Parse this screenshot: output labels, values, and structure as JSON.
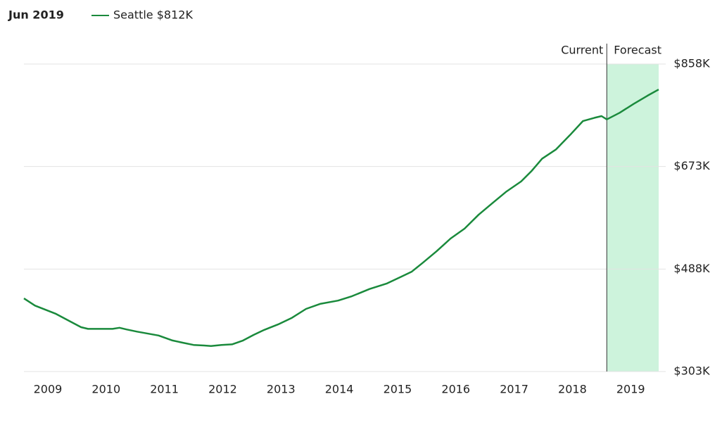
{
  "chart_data": {
    "type": "line",
    "title": "Jun 2019",
    "x": [
      2008.59,
      2008.78,
      2009.14,
      2009.39,
      2009.57,
      2009.69,
      2010.11,
      2010.23,
      2010.35,
      2010.53,
      2010.9,
      2011.14,
      2011.32,
      2011.5,
      2011.68,
      2011.8,
      2011.98,
      2012.16,
      2012.35,
      2012.53,
      2012.71,
      2012.95,
      2013.19,
      2013.43,
      2013.67,
      2013.98,
      2014.22,
      2014.52,
      2014.82,
      2015.06,
      2015.24,
      2015.43,
      2015.67,
      2015.91,
      2016.15,
      2016.39,
      2016.63,
      2016.87,
      2017.12,
      2017.3,
      2017.48,
      2017.72,
      2017.96,
      2018.18,
      2018.38,
      2018.5,
      2018.59,
      2018.81,
      2019.05,
      2019.29,
      2019.48
    ],
    "series": [
      {
        "name": "Seattle $812K",
        "color": "#1a8a3c",
        "values": [
          435,
          422,
          407,
          393,
          383,
          380,
          380,
          382,
          379,
          375,
          368,
          359,
          355,
          351,
          350,
          349,
          351,
          352,
          359,
          369,
          378,
          388,
          400,
          416,
          425,
          431,
          439,
          452,
          462,
          474,
          483,
          499,
          520,
          543,
          561,
          586,
          607,
          628,
          646,
          665,
          687,
          704,
          730,
          755,
          761,
          764,
          758,
          770,
          786,
          801,
          812
        ]
      }
    ],
    "xlim": [
      2008.59,
      2019.48
    ],
    "xticks": [
      2009,
      2010,
      2011,
      2012,
      2013,
      2014,
      2015,
      2016,
      2017,
      2018,
      2019
    ],
    "ylim": [
      303,
      858
    ],
    "yticks": [
      {
        "value": 303,
        "label": "$303K"
      },
      {
        "value": 488,
        "label": "$488K"
      },
      {
        "value": 673,
        "label": "$673K"
      },
      {
        "value": 858,
        "label": "$858K"
      }
    ],
    "grid": true,
    "forecast_start": 2018.59,
    "forecast_color": "#cdf3dc",
    "annotations": [
      "Current",
      "Forecast"
    ]
  }
}
